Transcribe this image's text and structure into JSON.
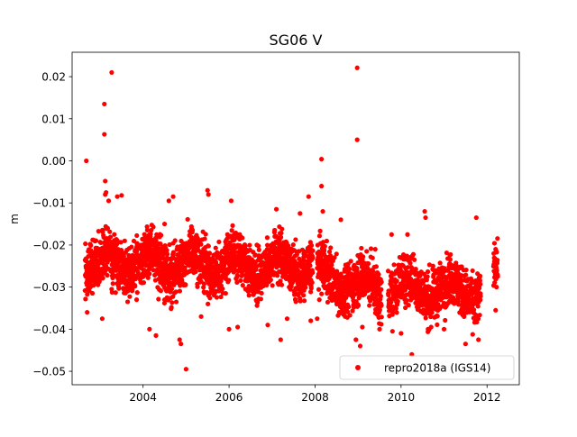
{
  "chart_data": {
    "type": "scatter",
    "title": "SG06 V",
    "xlabel": "",
    "ylabel": "m",
    "xlim": [
      2002.35,
      2012.75
    ],
    "ylim": [
      -0.0532,
      0.0258
    ],
    "x_ticks": [
      2004,
      2006,
      2008,
      2010,
      2012
    ],
    "x_tick_labels": [
      "2004",
      "2006",
      "2008",
      "2010",
      "2012"
    ],
    "y_ticks": [
      0.02,
      0.01,
      0.0,
      -0.01,
      -0.02,
      -0.03,
      -0.04,
      -0.05
    ],
    "y_tick_labels": [
      "0.02",
      "0.01",
      "0.00",
      "−0.01",
      "−0.02",
      "−0.03",
      "−0.04",
      "−0.05"
    ],
    "grid": false,
    "legend_position": "lower-right",
    "marker_color": "#ff0000",
    "series": [
      {
        "name": "repro2018a (IGS14)",
        "marker": "circle",
        "segments": [
          {
            "x_start": 2002.65,
            "x_end": 2007.95,
            "center_start": -0.024,
            "center_end": -0.025,
            "spread": 0.0055
          },
          {
            "x_start": 2008.05,
            "x_end": 2009.55,
            "center_start": -0.027,
            "center_end": -0.031,
            "spread": 0.0055
          },
          {
            "x_start": 2009.7,
            "x_end": 2011.85,
            "center_start": -0.03,
            "center_end": -0.031,
            "spread": 0.0055
          },
          {
            "x_start": 2012.15,
            "x_end": 2012.25,
            "center_start": -0.027,
            "center_end": -0.027,
            "spread": 0.004
          }
        ],
        "points": [
          {
            "x": 2002.68,
            "y": 0.0
          },
          {
            "x": 2003.1,
            "y": 0.0135
          },
          {
            "x": 2003.1,
            "y": 0.0063
          },
          {
            "x": 2003.27,
            "y": 0.021
          },
          {
            "x": 2003.12,
            "y": -0.0048
          },
          {
            "x": 2003.14,
            "y": -0.0075
          },
          {
            "x": 2003.12,
            "y": -0.008
          },
          {
            "x": 2003.2,
            "y": -0.0095
          },
          {
            "x": 2003.5,
            "y": -0.0082
          },
          {
            "x": 2003.4,
            "y": -0.0085
          },
          {
            "x": 2002.7,
            "y": -0.036
          },
          {
            "x": 2003.05,
            "y": -0.0375
          },
          {
            "x": 2003.85,
            "y": -0.033
          },
          {
            "x": 2004.15,
            "y": -0.04
          },
          {
            "x": 2004.3,
            "y": -0.0415
          },
          {
            "x": 2004.5,
            "y": -0.033
          },
          {
            "x": 2004.5,
            "y": -0.015
          },
          {
            "x": 2004.7,
            "y": -0.0085
          },
          {
            "x": 2004.6,
            "y": -0.0095
          },
          {
            "x": 2004.85,
            "y": -0.0425
          },
          {
            "x": 2004.88,
            "y": -0.0435
          },
          {
            "x": 2005.0,
            "y": -0.0495
          },
          {
            "x": 2005.35,
            "y": -0.037
          },
          {
            "x": 2005.5,
            "y": -0.007
          },
          {
            "x": 2005.52,
            "y": -0.008
          },
          {
            "x": 2006.05,
            "y": -0.0095
          },
          {
            "x": 2006.0,
            "y": -0.04
          },
          {
            "x": 2006.2,
            "y": -0.0395
          },
          {
            "x": 2006.9,
            "y": -0.039
          },
          {
            "x": 2007.1,
            "y": -0.0115
          },
          {
            "x": 2007.2,
            "y": -0.0425
          },
          {
            "x": 2007.35,
            "y": -0.0375
          },
          {
            "x": 2007.65,
            "y": -0.0125
          },
          {
            "x": 2007.85,
            "y": -0.0085
          },
          {
            "x": 2007.9,
            "y": -0.038
          },
          {
            "x": 2008.05,
            "y": -0.0375
          },
          {
            "x": 2008.15,
            "y": 0.0004
          },
          {
            "x": 2008.15,
            "y": -0.006
          },
          {
            "x": 2008.18,
            "y": -0.012
          },
          {
            "x": 2008.6,
            "y": -0.014
          },
          {
            "x": 2008.7,
            "y": -0.037
          },
          {
            "x": 2008.95,
            "y": -0.0425
          },
          {
            "x": 2008.98,
            "y": 0.0221
          },
          {
            "x": 2008.98,
            "y": 0.005
          },
          {
            "x": 2009.05,
            "y": -0.044
          },
          {
            "x": 2009.1,
            "y": -0.0395
          },
          {
            "x": 2009.2,
            "y": -0.0215
          },
          {
            "x": 2009.4,
            "y": -0.021
          },
          {
            "x": 2009.5,
            "y": -0.04
          },
          {
            "x": 2009.78,
            "y": -0.0175
          },
          {
            "x": 2009.8,
            "y": -0.0405
          },
          {
            "x": 2010.0,
            "y": -0.041
          },
          {
            "x": 2010.15,
            "y": -0.0175
          },
          {
            "x": 2010.25,
            "y": -0.046
          },
          {
            "x": 2010.55,
            "y": -0.012
          },
          {
            "x": 2010.57,
            "y": -0.0135
          },
          {
            "x": 2010.7,
            "y": -0.0395
          },
          {
            "x": 2011.0,
            "y": -0.04
          },
          {
            "x": 2011.5,
            "y": -0.0435
          },
          {
            "x": 2011.75,
            "y": -0.0135
          },
          {
            "x": 2011.8,
            "y": -0.0425
          },
          {
            "x": 2012.2,
            "y": -0.021
          },
          {
            "x": 2012.2,
            "y": -0.0355
          },
          {
            "x": 2012.22,
            "y": -0.03
          }
        ]
      }
    ]
  }
}
